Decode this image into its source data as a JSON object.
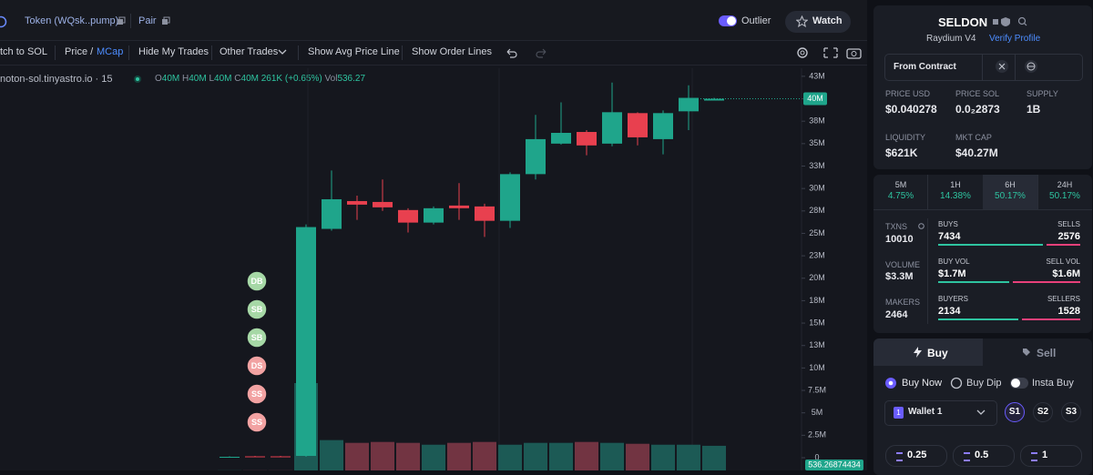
{
  "header": {
    "token": "Token (WQsk..pump)",
    "pair": "Pair",
    "outlier": "Outlier",
    "watch": "Watch"
  },
  "toolbar": {
    "switch": "tch to SOL",
    "price": "Price /",
    "mcap": "MCap",
    "items": [
      "Hide My Trades",
      "Other Trades",
      "Show Avg Price Line",
      "Show Order Lines"
    ]
  },
  "legend": {
    "source": "noton-sol.tinyastro.io · 15",
    "ohlc": [
      {
        "key": "O",
        "value": "40M"
      },
      {
        "key": "H",
        "value": "40M"
      },
      {
        "key": "L",
        "value": "40M"
      },
      {
        "key": "C",
        "value": "40M"
      }
    ],
    "change": "261K (+0.65%)",
    "vol_key": "Vol",
    "vol": "536.27"
  },
  "chart_data": {
    "type": "candlestick",
    "open": [
      0.1,
      0.15,
      0.15,
      0.2,
      25.5,
      28.6,
      28.5,
      27.6,
      26.2,
      28.1,
      28,
      26.4,
      31.6,
      35,
      36.3,
      35,
      38.4,
      35.5,
      38.6,
      39.8
    ],
    "high": [
      0.15,
      0.2,
      0.2,
      26,
      32,
      29.2,
      31,
      27.8,
      28,
      30.6,
      28.3,
      31.8,
      38.2,
      39.6,
      36.5,
      41.8,
      38.5,
      38.7,
      41.5,
      40.1
    ],
    "low": [
      0.05,
      0.05,
      0.05,
      0.1,
      25.3,
      26.5,
      27.5,
      25.1,
      26,
      26.5,
      24.6,
      25.6,
      31,
      34.9,
      33.7,
      34.7,
      34.8,
      33.8,
      36.5,
      39.8
    ],
    "close": [
      0.1,
      0.1,
      0.1,
      25.7,
      28.8,
      28.2,
      27.9,
      26.2,
      27.8,
      27.8,
      26.4,
      31.6,
      35.5,
      36.2,
      34.8,
      38.5,
      35.7,
      38.4,
      40.1,
      40
    ],
    "volume": [
      3,
      3,
      3,
      1900,
      660,
      600,
      620,
      600,
      560,
      600,
      620,
      560,
      600,
      600,
      620,
      600,
      580,
      560,
      560,
      536.26874434
    ],
    "up_color": "#1fa58b",
    "down_color": "#e8404f",
    "up_volume_color": "#1c5a55",
    "down_volume_color": "#723442",
    "ylim": [
      -1.42,
      43.4
    ],
    "yticks": [
      0,
      {
        "value": 2.5,
        "label": "2.5M"
      },
      {
        "value": 5,
        "label": "5M"
      },
      {
        "value": 7.5,
        "label": "7.5M"
      },
      {
        "value": 10,
        "label": "10M"
      },
      {
        "value": 12.5,
        "label": "13M"
      },
      {
        "value": 15,
        "label": "15M"
      },
      {
        "value": 17.5,
        "label": "18M"
      },
      {
        "value": 20,
        "label": "20M"
      },
      {
        "value": 22.5,
        "label": "23M"
      },
      {
        "value": 25,
        "label": "25M"
      },
      {
        "value": 27.5,
        "label": "28M"
      },
      {
        "value": 30,
        "label": "30M"
      },
      {
        "value": 32.5,
        "label": "33M"
      },
      {
        "value": 35,
        "label": "35M"
      },
      {
        "value": 37.5,
        "label": "38M"
      },
      {
        "value": 40,
        "label": "40M"
      },
      {
        "value": 42.5,
        "label": "43M"
      }
    ],
    "last_price": {
      "value": 40,
      "label": "40M"
    },
    "trade_markers": [
      {
        "label": "DB",
        "color": "#a6d8a6"
      },
      {
        "label": "SB",
        "color": "#a6d8a6"
      },
      {
        "label": "SB",
        "color": "#a6d8a6"
      },
      {
        "label": "DS",
        "color": "#f2a2a2"
      },
      {
        "label": "SS",
        "color": "#f2a2a2"
      },
      {
        "label": "SS",
        "color": "#f2a2a2"
      }
    ]
  },
  "token_panel": {
    "name": "SELDON",
    "dex": "Raydium V4",
    "verify": "Verify Profile",
    "contract": "From Contract",
    "stats": [
      {
        "label": "PRICE USD",
        "value": "$0.040278"
      },
      {
        "label": "PRICE SOL",
        "value": "0.0₂2873"
      },
      {
        "label": "SUPPLY",
        "value": "1B"
      },
      {
        "label": "LIQUIDITY",
        "value": "$621K"
      },
      {
        "label": "MKT CAP",
        "value": "$40.27M"
      }
    ]
  },
  "timeframes": [
    {
      "label": "5M",
      "change": "4.75%"
    },
    {
      "label": "1H",
      "change": "14.38%"
    },
    {
      "label": "6H",
      "change": "50.17%"
    },
    {
      "label": "24H",
      "change": "50.17%"
    }
  ],
  "txns": {
    "left": [
      {
        "label": "TXNS",
        "value": "10010"
      },
      {
        "label": "VOLUME",
        "value": "$3.3M"
      },
      {
        "label": "MAKERS",
        "value": "2464"
      }
    ],
    "rows": [
      {
        "left_label": "BUYS",
        "left": "7434",
        "right_label": "SELLS",
        "right": "2576"
      },
      {
        "left_label": "BUY VOL",
        "left": "$1.7M",
        "right_label": "SELL VOL",
        "right": "$1.6M"
      },
      {
        "left_label": "BUYERS",
        "left": "2134",
        "right_label": "SELLERS",
        "right": "1528"
      }
    ]
  },
  "trade": {
    "tabs": [
      "Buy",
      "Sell"
    ],
    "modes": [
      "Buy Now",
      "Buy Dip"
    ],
    "insta": "Insta Buy",
    "wallet_count": "1",
    "wallet": "Wallet 1",
    "slots": [
      "S1",
      "S2",
      "S3"
    ],
    "amounts": [
      "0.25",
      "0.5",
      "1"
    ]
  }
}
